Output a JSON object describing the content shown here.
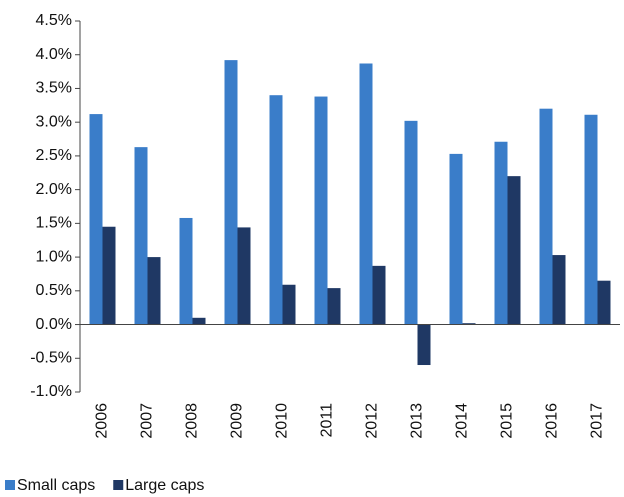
{
  "chart_data": {
    "type": "bar",
    "categories": [
      "2006",
      "2007",
      "2008",
      "2009",
      "2010",
      "2011",
      "2012",
      "2013",
      "2014",
      "2015",
      "2016",
      "2017"
    ],
    "series": [
      {
        "name": "Small caps",
        "color": "#3a7dc9",
        "values": [
          3.12,
          2.63,
          1.58,
          3.92,
          3.4,
          3.38,
          3.87,
          3.02,
          2.53,
          2.71,
          3.2,
          3.11
        ]
      },
      {
        "name": "Large caps",
        "color": "#1f3864",
        "values": [
          1.45,
          1.0,
          0.1,
          1.44,
          0.59,
          0.54,
          0.87,
          -0.6,
          0.02,
          2.2,
          1.03,
          0.65
        ]
      }
    ],
    "ylim": [
      -1.0,
      4.5
    ],
    "yticks": [
      {
        "value": -1.0,
        "label": "-1.0%"
      },
      {
        "value": -0.5,
        "label": "-0.5%"
      },
      {
        "value": 0,
        "label": "0.0%"
      },
      {
        "value": 0.5,
        "label": "0.5%"
      },
      {
        "value": 1.0,
        "label": "1.0%"
      },
      {
        "value": 1.5,
        "label": "1.5%"
      },
      {
        "value": 2.0,
        "label": "2.0%"
      },
      {
        "value": 2.5,
        "label": "2.5%"
      },
      {
        "value": 3.0,
        "label": "3.0%"
      },
      {
        "value": 3.5,
        "label": "3.5%"
      },
      {
        "value": 4.0,
        "label": "4.0%"
      },
      {
        "value": 4.5,
        "label": "4.5%"
      }
    ],
    "grid": false
  }
}
